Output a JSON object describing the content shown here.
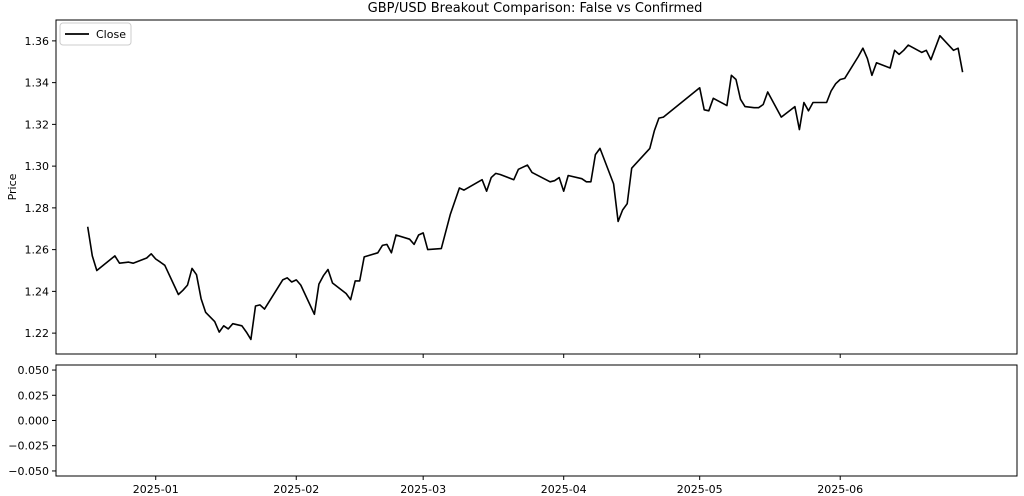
{
  "chart_data": [
    {
      "type": "line",
      "title": "GBP/USD Breakout Comparison: False vs Confirmed",
      "xlabel": "",
      "ylabel": "Price",
      "xlim": [
        "2024-12-10",
        "2025-07-10"
      ],
      "ylim": [
        1.21,
        1.37
      ],
      "yticks": [
        1.22,
        1.24,
        1.26,
        1.28,
        1.3,
        1.32,
        1.34,
        1.36
      ],
      "ytick_labels": [
        "1.22",
        "1.24",
        "1.26",
        "1.28",
        "1.30",
        "1.32",
        "1.34",
        "1.36"
      ],
      "grid": false,
      "legend": {
        "placement": "top-left",
        "entries": [
          "Close"
        ]
      },
      "series": [
        {
          "name": "Close",
          "color": "#000000",
          "points": [
            [
              "2024-12-17",
              1.271
            ],
            [
              "2024-12-18",
              1.257
            ],
            [
              "2024-12-19",
              1.25
            ],
            [
              "2024-12-23",
              1.257
            ],
            [
              "2024-12-24",
              1.2535
            ],
            [
              "2024-12-26",
              1.254
            ],
            [
              "2024-12-27",
              1.2535
            ],
            [
              "2024-12-30",
              1.256
            ],
            [
              "2024-12-31",
              1.258
            ],
            [
              "2025-01-01",
              1.2555
            ],
            [
              "2025-01-02",
              1.254
            ],
            [
              "2025-01-03",
              1.2525
            ],
            [
              "2025-01-06",
              1.2385
            ],
            [
              "2025-01-07",
              1.2405
            ],
            [
              "2025-01-08",
              1.243
            ],
            [
              "2025-01-09",
              1.251
            ],
            [
              "2025-01-10",
              1.248
            ],
            [
              "2025-01-11",
              1.2365
            ],
            [
              "2025-01-12",
              1.23
            ],
            [
              "2025-01-14",
              1.2255
            ],
            [
              "2025-01-15",
              1.2205
            ],
            [
              "2025-01-16",
              1.2235
            ],
            [
              "2025-01-17",
              1.222
            ],
            [
              "2025-01-18",
              1.2245
            ],
            [
              "2025-01-20",
              1.2235
            ],
            [
              "2025-01-21",
              1.2205
            ],
            [
              "2025-01-22",
              1.217
            ],
            [
              "2025-01-23",
              1.233
            ],
            [
              "2025-01-24",
              1.2335
            ],
            [
              "2025-01-25",
              1.2315
            ],
            [
              "2025-01-29",
              1.2455
            ],
            [
              "2025-01-30",
              1.2465
            ],
            [
              "2025-01-31",
              1.2445
            ],
            [
              "2025-02-01",
              1.2455
            ],
            [
              "2025-02-02",
              1.243
            ],
            [
              "2025-02-05",
              1.229
            ],
            [
              "2025-02-06",
              1.2435
            ],
            [
              "2025-02-07",
              1.2475
            ],
            [
              "2025-02-08",
              1.2505
            ],
            [
              "2025-02-09",
              1.244
            ],
            [
              "2025-02-12",
              1.239
            ],
            [
              "2025-02-13",
              1.236
            ],
            [
              "2025-02-14",
              1.245
            ],
            [
              "2025-02-15",
              1.245
            ],
            [
              "2025-02-16",
              1.2565
            ],
            [
              "2025-02-19",
              1.2585
            ],
            [
              "2025-02-20",
              1.262
            ],
            [
              "2025-02-21",
              1.2625
            ],
            [
              "2025-02-22",
              1.2585
            ],
            [
              "2025-02-23",
              1.267
            ],
            [
              "2025-02-26",
              1.265
            ],
            [
              "2025-02-27",
              1.2625
            ],
            [
              "2025-02-28",
              1.267
            ],
            [
              "2025-03-01",
              1.268
            ],
            [
              "2025-03-02",
              1.26
            ],
            [
              "2025-03-05",
              1.2605
            ],
            [
              "2025-03-07",
              1.277
            ],
            [
              "2025-03-09",
              1.2895
            ],
            [
              "2025-03-10",
              1.2885
            ],
            [
              "2025-03-14",
              1.2935
            ],
            [
              "2025-03-15",
              1.288
            ],
            [
              "2025-03-16",
              1.2945
            ],
            [
              "2025-03-17",
              1.2965
            ],
            [
              "2025-03-18",
              1.296
            ],
            [
              "2025-03-21",
              1.2935
            ],
            [
              "2025-03-22",
              1.2985
            ],
            [
              "2025-03-23",
              1.2995
            ],
            [
              "2025-03-24",
              1.3005
            ],
            [
              "2025-03-25",
              1.297
            ],
            [
              "2025-03-29",
              1.2925
            ],
            [
              "2025-03-30",
              1.293
            ],
            [
              "2025-03-31",
              1.2945
            ],
            [
              "2025-04-01",
              1.288
            ],
            [
              "2025-04-02",
              1.2955
            ],
            [
              "2025-04-05",
              1.294
            ],
            [
              "2025-04-06",
              1.2925
            ],
            [
              "2025-04-07",
              1.2925
            ],
            [
              "2025-04-08",
              1.3055
            ],
            [
              "2025-04-09",
              1.3085
            ],
            [
              "2025-04-12",
              1.2915
            ],
            [
              "2025-04-13",
              1.2735
            ],
            [
              "2025-04-14",
              1.279
            ],
            [
              "2025-04-15",
              1.282
            ],
            [
              "2025-04-16",
              1.299
            ],
            [
              "2025-04-20",
              1.3085
            ],
            [
              "2025-04-21",
              1.317
            ],
            [
              "2025-04-22",
              1.323
            ],
            [
              "2025-04-23",
              1.3235
            ],
            [
              "2025-05-01",
              1.3375
            ],
            [
              "2025-05-02",
              1.327
            ],
            [
              "2025-05-03",
              1.3265
            ],
            [
              "2025-05-04",
              1.3325
            ],
            [
              "2025-05-07",
              1.329
            ],
            [
              "2025-05-08",
              1.3435
            ],
            [
              "2025-05-09",
              1.3415
            ],
            [
              "2025-05-10",
              1.332
            ],
            [
              "2025-05-11",
              1.3285
            ],
            [
              "2025-05-13",
              1.328
            ],
            [
              "2025-05-14",
              1.328
            ],
            [
              "2025-05-15",
              1.3295
            ],
            [
              "2025-05-16",
              1.3355
            ],
            [
              "2025-05-19",
              1.3235
            ],
            [
              "2025-05-22",
              1.3285
            ],
            [
              "2025-05-23",
              1.3175
            ],
            [
              "2025-05-24",
              1.3305
            ],
            [
              "2025-05-25",
              1.3265
            ],
            [
              "2025-05-26",
              1.3305
            ],
            [
              "2025-05-29",
              1.3305
            ],
            [
              "2025-05-30",
              1.336
            ],
            [
              "2025-05-31",
              1.3395
            ],
            [
              "2025-06-01",
              1.3415
            ],
            [
              "2025-06-02",
              1.342
            ],
            [
              "2025-06-05",
              1.3525
            ],
            [
              "2025-06-06",
              1.3565
            ],
            [
              "2025-06-07",
              1.3515
            ],
            [
              "2025-06-08",
              1.3435
            ],
            [
              "2025-06-09",
              1.3495
            ],
            [
              "2025-06-12",
              1.347
            ],
            [
              "2025-06-13",
              1.3555
            ],
            [
              "2025-06-14",
              1.3535
            ],
            [
              "2025-06-15",
              1.3555
            ],
            [
              "2025-06-16",
              1.358
            ],
            [
              "2025-06-19",
              1.3545
            ],
            [
              "2025-06-20",
              1.3555
            ],
            [
              "2025-06-21",
              1.351
            ],
            [
              "2025-06-23",
              1.3625
            ],
            [
              "2025-06-26",
              1.3555
            ],
            [
              "2025-06-27",
              1.3565
            ],
            [
              "2025-06-28",
              1.345
            ]
          ]
        }
      ]
    },
    {
      "type": "line",
      "title": "",
      "xlabel": "",
      "ylabel": "",
      "xlim": [
        "2024-12-10",
        "2025-07-10"
      ],
      "ylim": [
        -0.055,
        0.055
      ],
      "yticks": [
        0.05,
        0.025,
        0.0,
        -0.025,
        -0.05
      ],
      "ytick_labels": [
        "0.050",
        "0.025",
        "0.000",
        "−0.025",
        "−0.050"
      ],
      "xticks": [
        "2025-01-01",
        "2025-02-01",
        "2025-03-01",
        "2025-04-01",
        "2025-05-01",
        "2025-06-01"
      ],
      "xtick_labels": [
        "2025-01",
        "2025-02",
        "2025-03",
        "2025-04",
        "2025-05",
        "2025-06"
      ],
      "grid": false,
      "series": []
    }
  ]
}
